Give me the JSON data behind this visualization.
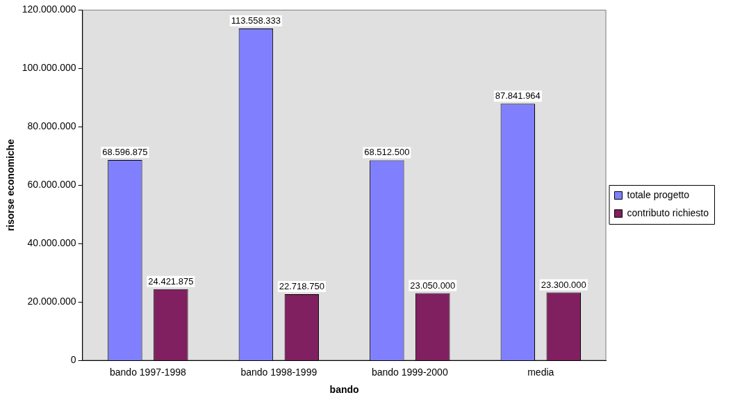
{
  "chart_data": {
    "type": "bar",
    "xlabel": "bando",
    "ylabel": "risorse economiche",
    "categories": [
      "bando 1997-1998",
      "bando 1998-1999",
      "bando 1999-2000",
      "media"
    ],
    "series": [
      {
        "name": "totale progetto",
        "color": "#8080ff",
        "values": [
          68596875,
          113558333,
          68512500,
          87841964
        ],
        "value_labels": [
          "68.596.875",
          "113.558.333",
          "68.512.500",
          "87.841.964"
        ]
      },
      {
        "name": "contributo richiesto",
        "color": "#802060",
        "values": [
          24421875,
          22718750,
          23050000,
          23300000
        ],
        "value_labels": [
          "24.421.875",
          "22.718.750",
          "23.050.000",
          "23.300.000"
        ]
      }
    ],
    "ylim": [
      0,
      120000000
    ],
    "yticks": [
      0,
      {
        "value": 20000000,
        "label": "20.000.000"
      },
      {
        "value": 40000000,
        "label": "40.000.000"
      },
      {
        "value": 60000000,
        "label": "60.000.000"
      },
      {
        "value": 80000000,
        "label": "80.000.000"
      },
      {
        "value": 100000000,
        "label": "100.000.000"
      },
      {
        "value": 120000000,
        "label": "120.000.000"
      }
    ],
    "grid": false,
    "legend": "right"
  }
}
